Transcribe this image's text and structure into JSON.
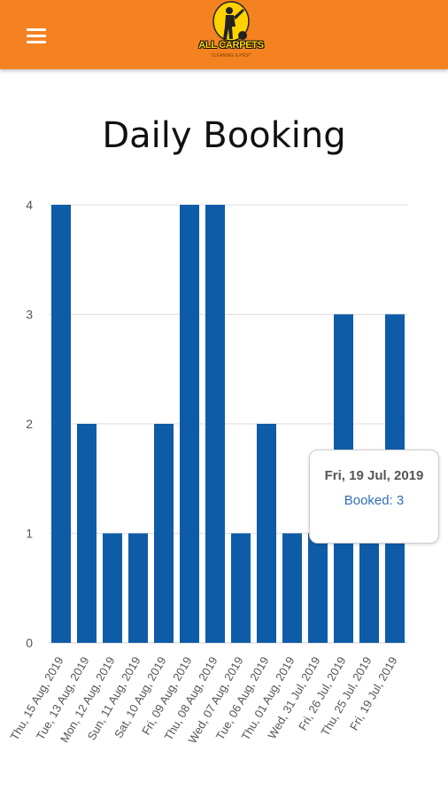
{
  "header": {
    "menu_icon": "hamburger-menu-icon",
    "logo_text": "ALL CARPETS",
    "logo_subtext": "CLEANING & PEST",
    "background_color": "#f58220"
  },
  "page": {
    "title": "Daily Booking"
  },
  "chart_data": {
    "type": "bar",
    "title": "Daily Booking",
    "categories": [
      "Thu, 15 Aug, 2019",
      "Tue, 13 Aug, 2019",
      "Mon, 12 Aug, 2019",
      "Sun, 11 Aug, 2019",
      "Sat, 10 Aug, 2019",
      "Fri, 09 Aug, 2019",
      "Thu, 08 Aug, 2019",
      "Wed, 07 Aug, 2019",
      "Tue, 06 Aug, 2019",
      "Thu, 01 Aug, 2019",
      "Wed, 31 Jul, 2019",
      "Fri, 26 Jul, 2019",
      "Thu, 25 Jul, 2019",
      "Fri, 19 Jul, 2019"
    ],
    "series": [
      {
        "name": "Booked",
        "values": [
          4,
          2,
          1,
          1,
          2,
          4,
          4,
          1,
          2,
          1,
          1,
          3,
          1,
          3
        ],
        "color": "#0e5ca8"
      }
    ],
    "ylim": [
      0,
      4
    ],
    "yticks": [
      0,
      1,
      2,
      3,
      4
    ],
    "grid": true,
    "grid_color": "#dddddd"
  },
  "tooltip": {
    "title": "Fri, 19 Jul, 2019",
    "value_text": "Booked: 3"
  }
}
